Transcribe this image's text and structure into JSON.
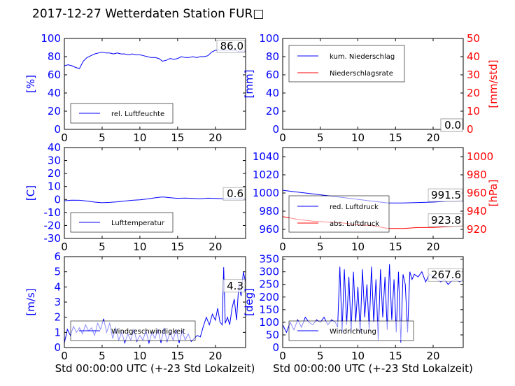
{
  "title": "2017-12-27 Wetterdaten Station FUR□",
  "colors": {
    "left_axis": "#0000ff",
    "right_axis": "#ff0000",
    "line1": "#0000ff",
    "line2": "#ff0000",
    "frame": "#000000"
  },
  "chart_data": [
    {
      "id": "humidity",
      "type": "line",
      "ylabel": "[%]",
      "ylim": [
        0,
        100
      ],
      "yticks": [
        0,
        20,
        40,
        60,
        80,
        100
      ],
      "xlim": [
        0,
        24
      ],
      "xticks": [
        0,
        5,
        10,
        15,
        20
      ],
      "xlabel": "",
      "legend": {
        "position": "lower-left",
        "entries": [
          "rel. Luftfeuchte"
        ]
      },
      "annotation": "86.0",
      "series": [
        {
          "name": "rel. Luftfeuchte",
          "color": "#0000ff",
          "x": [
            0,
            0.5,
            1,
            1.5,
            2,
            2.5,
            3,
            3.5,
            4,
            4.5,
            5,
            5.5,
            6,
            6.5,
            7,
            7.5,
            8,
            8.5,
            9,
            9.5,
            10,
            10.5,
            11,
            11.5,
            12,
            12.5,
            13,
            13.5,
            14,
            14.5,
            15,
            15.5,
            16,
            16.5,
            17,
            17.5,
            18,
            18.5,
            19,
            19.5,
            20,
            20.5,
            21,
            21.5,
            22,
            22.5,
            23,
            23.5,
            24
          ],
          "y": [
            70,
            71,
            70,
            68,
            67,
            75,
            79,
            81,
            83,
            84,
            85,
            84,
            84,
            83,
            84,
            83,
            83,
            82,
            83,
            82,
            82,
            81,
            80,
            79,
            79,
            78,
            75,
            76,
            78,
            77,
            78,
            80,
            79,
            79,
            80,
            79,
            80,
            80,
            81,
            85,
            87,
            87,
            87,
            87,
            87,
            87,
            86,
            86,
            86
          ]
        }
      ]
    },
    {
      "id": "precip",
      "type": "line",
      "ylabel": "[mm]",
      "ylim": [
        0,
        100
      ],
      "yticks": [
        0,
        20,
        40,
        60,
        80,
        100
      ],
      "y2label": "[mm/std]",
      "y2lim": [
        0,
        50
      ],
      "y2ticks": [
        0,
        10,
        20,
        30,
        40,
        50
      ],
      "xlim": [
        0,
        24
      ],
      "xticks": [
        0,
        5,
        10,
        15,
        20
      ],
      "xlabel": "",
      "legend": {
        "position": "upper-left",
        "entries": [
          "kum. Niederschlag",
          "Niederschlagsrate"
        ]
      },
      "annotation": "0.0",
      "annotation2": "0.0",
      "series": [
        {
          "name": "kum. Niederschlag",
          "color": "#0000ff",
          "axis": "left",
          "x": [
            0,
            24
          ],
          "y": [
            0,
            0
          ]
        },
        {
          "name": "Niederschlagsrate",
          "color": "#ff0000",
          "axis": "right",
          "x": [
            0,
            24
          ],
          "y": [
            0,
            0
          ]
        }
      ]
    },
    {
      "id": "temperature",
      "type": "line",
      "ylabel": "[C]",
      "ylim": [
        -30,
        40
      ],
      "yticks": [
        -30,
        -20,
        -10,
        0,
        10,
        20,
        30,
        40
      ],
      "xlim": [
        0,
        24
      ],
      "xticks": [
        0,
        5,
        10,
        15,
        20
      ],
      "xlabel": "",
      "legend": {
        "position": "lower-left",
        "entries": [
          "Lufttemperatur"
        ]
      },
      "annotation": "0.6",
      "series": [
        {
          "name": "Lufttemperatur",
          "color": "#0000ff",
          "x": [
            0,
            1,
            2,
            3,
            4,
            5,
            6,
            7,
            8,
            9,
            10,
            11,
            12,
            13,
            14,
            15,
            16,
            17,
            18,
            19,
            20,
            21,
            22,
            23,
            24
          ],
          "y": [
            -1,
            -0.5,
            -0.6,
            -1.2,
            -2,
            -2.5,
            -2.2,
            -1.8,
            -1.2,
            -0.6,
            -0.3,
            0.4,
            1.3,
            2,
            1.4,
            0.9,
            1.1,
            0.8,
            0.6,
            1,
            0.8,
            0.6,
            0.6,
            0.5,
            0.6
          ]
        }
      ]
    },
    {
      "id": "pressure",
      "type": "line",
      "ylabel": "",
      "ylim": [
        950,
        1050
      ],
      "yticks": [
        960,
        980,
        1000,
        1020,
        1040
      ],
      "y2label": "[hPa]",
      "y2lim": [
        910,
        1010
      ],
      "y2ticks": [
        920,
        940,
        960,
        980,
        1000
      ],
      "xlim": [
        0,
        24
      ],
      "xticks": [
        0,
        5,
        10,
        15,
        20
      ],
      "xlabel": "",
      "legend": {
        "position": "lower-left",
        "entries": [
          "red. Luftdruck",
          "abs. Luftdruck"
        ]
      },
      "annotation": "991.5",
      "annotation2": "923.8",
      "series": [
        {
          "name": "red. Luftdruck",
          "color": "#0000ff",
          "axis": "left",
          "x": [
            0,
            2,
            4,
            6,
            8,
            10,
            12,
            14,
            16,
            18,
            20,
            22,
            24
          ],
          "y": [
            1003,
            1001,
            999,
            997,
            995,
            993,
            991,
            989,
            989,
            989.5,
            990,
            991,
            991.5
          ]
        },
        {
          "name": "abs. Luftdruck",
          "color": "#ff0000",
          "axis": "right",
          "x": [
            0,
            2,
            4,
            6,
            8,
            10,
            12,
            14,
            16,
            18,
            20,
            22,
            24
          ],
          "y": [
            934,
            931,
            929,
            928,
            927,
            925,
            924,
            921,
            921,
            922,
            922,
            923,
            924
          ]
        }
      ]
    },
    {
      "id": "wind_speed",
      "type": "line",
      "ylabel": "[m/s]",
      "ylim": [
        0,
        6
      ],
      "yticks": [
        0,
        1,
        2,
        3,
        4,
        5,
        6
      ],
      "xlim": [
        0,
        24
      ],
      "xticks": [
        0,
        5,
        10,
        15,
        20
      ],
      "xlabel": "Std 00:00:00 UTC (+-23 Std Lokalzeit)",
      "legend": {
        "position": "lower-left",
        "entries": [
          "Windgeschwindigkeit"
        ]
      },
      "annotation": "4.3",
      "series": [
        {
          "name": "Windgeschwindigkeit",
          "color": "#0000ff",
          "x": [
            0,
            0.4,
            0.8,
            1.2,
            1.6,
            2,
            2.4,
            2.8,
            3.2,
            3.6,
            4,
            4.4,
            4.8,
            5.2,
            5.6,
            6,
            6.4,
            6.8,
            7.2,
            7.6,
            8,
            8.4,
            8.8,
            9.2,
            9.6,
            10,
            10.4,
            10.8,
            11.2,
            11.6,
            12,
            12.4,
            12.8,
            13.2,
            13.6,
            14,
            14.4,
            14.8,
            15.2,
            15.6,
            16,
            16.4,
            16.8,
            17.2,
            17.6,
            18,
            18.4,
            18.8,
            19.2,
            19.6,
            20,
            20.3,
            20.6,
            20.9,
            21.1,
            21.3,
            21.6,
            21.9,
            22.2,
            22.5,
            22.8,
            23.1,
            23.4,
            23.7,
            24
          ],
          "y": [
            0.3,
            1.2,
            0.8,
            1.4,
            1.0,
            1.3,
            0.9,
            1.5,
            1.1,
            1.3,
            0.8,
            1.6,
            1.2,
            1.9,
            1.0,
            1.6,
            0.6,
            1.3,
            0.5,
            1.0,
            0.3,
            0.9,
            0.5,
            1.2,
            0.4,
            0.8,
            0.5,
            1.1,
            0.3,
            1.0,
            0.6,
            1.2,
            0.3,
            1.3,
            0.4,
            1.0,
            0.5,
            1.2,
            0.3,
            1.1,
            0.5,
            0.9,
            0.4,
            0.6,
            0.8,
            0.7,
            1.4,
            2.0,
            1.5,
            2.2,
            1.8,
            2.6,
            1.7,
            1.5,
            5.3,
            1.6,
            2.0,
            1.5,
            2.6,
            3.2,
            1.8,
            4.2,
            3.4,
            5.0,
            4.3
          ]
        }
      ]
    },
    {
      "id": "wind_dir",
      "type": "line",
      "ylabel": "[deg]",
      "ylim": [
        0,
        360
      ],
      "yticks": [
        0,
        50,
        100,
        150,
        200,
        250,
        300,
        350
      ],
      "xlim": [
        0,
        24
      ],
      "xticks": [
        0,
        5,
        10,
        15,
        20
      ],
      "xlabel": "Std 00:00:00 UTC (+-23 Std Lokalzeit)",
      "legend": {
        "position": "lower-left",
        "entries": [
          "Windrichtung"
        ]
      },
      "annotation": "267.6",
      "series": [
        {
          "name": "Windrichtung",
          "color": "#0000ff",
          "x": [
            0,
            0.5,
            1,
            1.5,
            2,
            2.5,
            3,
            3.5,
            4,
            4.5,
            5,
            5.5,
            6,
            6.5,
            7,
            7.3,
            7.6,
            7.9,
            8.2,
            8.5,
            8.8,
            9.1,
            9.4,
            9.7,
            10,
            10.3,
            10.6,
            10.9,
            11.2,
            11.5,
            11.8,
            12.1,
            12.4,
            12.7,
            13,
            13.3,
            13.6,
            13.9,
            14.2,
            14.5,
            14.8,
            15.1,
            15.4,
            15.7,
            16,
            16.3,
            16.6,
            16.9,
            17.2,
            17.5,
            18,
            18.5,
            19,
            19.5,
            20,
            20.5,
            21,
            21.5,
            22,
            22.5,
            23,
            23.5,
            24
          ],
          "y": [
            90,
            60,
            100,
            70,
            110,
            80,
            120,
            100,
            90,
            110,
            100,
            120,
            90,
            110,
            100,
            80,
            320,
            60,
            310,
            90,
            280,
            60,
            300,
            100,
            240,
            60,
            310,
            120,
            250,
            70,
            320,
            100,
            270,
            30,
            310,
            120,
            280,
            70,
            330,
            110,
            270,
            60,
            300,
            20,
            290,
            250,
            60,
            300,
            270,
            290,
            280,
            300,
            260,
            290,
            280,
            270,
            260,
            270,
            250,
            265,
            270,
            260,
            268
          ]
        }
      ]
    }
  ]
}
